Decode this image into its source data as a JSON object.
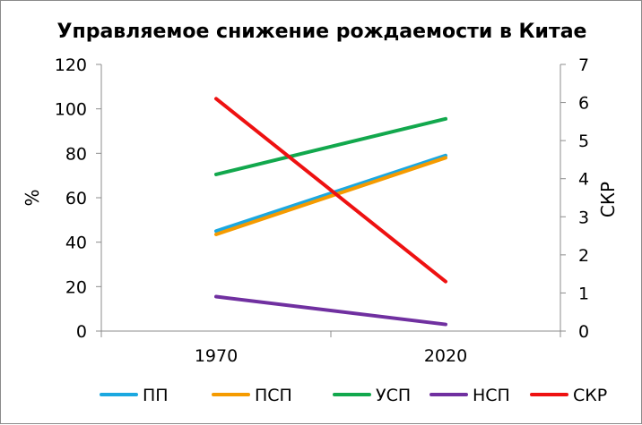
{
  "chart_data": {
    "type": "line",
    "title": "Управляемое снижение рождаемости в Китае",
    "categories": [
      "1970",
      "2020"
    ],
    "y_left": {
      "label": "%",
      "ylim": [
        0,
        120
      ],
      "ticks": [
        0,
        20,
        40,
        60,
        80,
        100,
        120
      ]
    },
    "y_right": {
      "label": "СКР",
      "ylim": [
        0,
        7
      ],
      "ticks": [
        0,
        1,
        2,
        3,
        4,
        5,
        6,
        7
      ]
    },
    "grid": false,
    "legend_position": "bottom",
    "series": [
      {
        "name": "ПП",
        "axis": "left",
        "color": "#1ba8e0",
        "values": [
          45,
          79
        ]
      },
      {
        "name": "ПСП",
        "axis": "left",
        "color": "#f59b00",
        "values": [
          43.5,
          78
        ]
      },
      {
        "name": "УСП",
        "axis": "left",
        "color": "#12a84d",
        "values": [
          70.5,
          95.5
        ]
      },
      {
        "name": "НСП",
        "axis": "left",
        "color": "#7030a0",
        "values": [
          15.5,
          3
        ]
      },
      {
        "name": "СКР",
        "axis": "right",
        "color": "#ee1111",
        "values": [
          6.1,
          1.3
        ]
      }
    ]
  }
}
